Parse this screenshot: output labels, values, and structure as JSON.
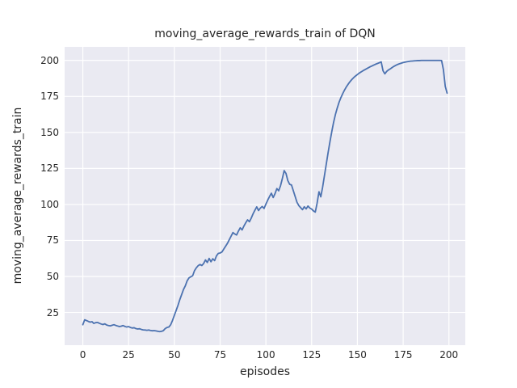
{
  "figure": {
    "title": "moving_average_rewards_train of DQN",
    "xlabel": "episodes",
    "ylabel": "moving_average_rewards_train",
    "background_color": "#ffffff",
    "axes_background_color": "#eaeaf2",
    "grid_color": "#ffffff",
    "text_color": "#262626",
    "line_color": "#4c72b0"
  },
  "chart_data": {
    "type": "line",
    "title": "moving_average_rewards_train of DQN",
    "xlabel": "episodes",
    "ylabel": "moving_average_rewards_train",
    "grid": true,
    "legend": false,
    "xlim": [
      -9.95,
      208.95
    ],
    "ylim": [
      2.3,
      209.4
    ],
    "xticks": [
      0,
      25,
      50,
      75,
      100,
      125,
      150,
      175,
      200
    ],
    "yticks": [
      25,
      50,
      75,
      100,
      125,
      150,
      175,
      200
    ],
    "series": [
      {
        "name": "moving_average_rewards_train",
        "color": "#4c72b0",
        "x_start": 0,
        "x_step": 1,
        "y": [
          16.5,
          19.9,
          19.4,
          18.8,
          18.3,
          18.6,
          17.4,
          17.9,
          18.1,
          17.5,
          17.0,
          16.6,
          17.1,
          16.3,
          15.9,
          15.7,
          16.1,
          16.5,
          16.0,
          15.6,
          15.2,
          15.5,
          15.9,
          15.3,
          14.9,
          15.2,
          14.6,
          14.2,
          14.4,
          13.8,
          13.5,
          13.7,
          13.2,
          12.9,
          12.8,
          12.6,
          12.8,
          12.5,
          12.3,
          12.4,
          12.2,
          11.9,
          11.7,
          11.9,
          12.4,
          13.8,
          14.6,
          14.9,
          16.5,
          19.5,
          23.0,
          26.5,
          30.0,
          34.0,
          37.5,
          41.0,
          43.5,
          47.0,
          49.0,
          49.8,
          50.5,
          54.0,
          56.0,
          57.5,
          58.3,
          57.6,
          59.0,
          61.5,
          59.7,
          62.5,
          60.2,
          62.3,
          61.0,
          64.3,
          66.0,
          66.3,
          67.0,
          69.0,
          71.0,
          73.0,
          75.5,
          78.0,
          80.5,
          79.5,
          78.8,
          81.5,
          83.8,
          82.3,
          85.0,
          87.3,
          89.3,
          88.0,
          90.5,
          93.5,
          96.0,
          98.3,
          95.8,
          97.5,
          98.6,
          97.2,
          100.2,
          103.0,
          105.5,
          107.8,
          104.8,
          107.5,
          111.0,
          109.5,
          113.0,
          118.0,
          123.5,
          121.5,
          116.5,
          114.0,
          113.5,
          109.5,
          105.5,
          101.5,
          99.2,
          97.8,
          96.4,
          98.4,
          96.9,
          98.9,
          97.5,
          96.8,
          95.5,
          94.7,
          101.0,
          108.8,
          105.3,
          112.0,
          120.0,
          128.0,
          136.0,
          143.5,
          150.5,
          157.0,
          162.5,
          167.0,
          171.0,
          174.2,
          177.0,
          179.5,
          181.7,
          183.6,
          185.3,
          186.8,
          188.1,
          189.2,
          190.2,
          191.2,
          192.0,
          192.8,
          193.5,
          194.2,
          194.9,
          195.6,
          196.2,
          196.8,
          197.4,
          197.9,
          198.4,
          199.0,
          192.8,
          190.7,
          192.4,
          193.4,
          194.2,
          195.1,
          195.9,
          196.6,
          197.2,
          197.7,
          198.1,
          198.5,
          198.8,
          199.1,
          199.3,
          199.5,
          199.6,
          199.7,
          199.8,
          199.9,
          199.9,
          200.0,
          200.0,
          200.0,
          200.0,
          200.0,
          200.0,
          200.0,
          200.0,
          200.0,
          200.0,
          200.0,
          199.9,
          193.5,
          182.0,
          177.3
        ]
      }
    ]
  }
}
